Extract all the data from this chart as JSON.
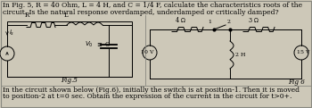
{
  "bg_color": "#cdc8b8",
  "text_top_line1": "In Fig. 5, R = 40 Ohm, L = 4 H, and C = 1/4 F, calculate the characteristics roots of the",
  "text_top_line2": "circuit. Is the natural response overdamped, underdamped or critically damped?",
  "text_bottom_line1": "In the circuit shown below (Fig.6), initially the switch is at position-1. Then it is moved",
  "text_bottom_line2": "to position-2 at t=0 sec. Obtain the expression of the current in the circuit for t>0+.",
  "fig5_label": "Fig.5",
  "fig6_label": "Fig 6",
  "border_color": "#888880",
  "font_size": 5.5,
  "label_font_size": 5.2,
  "circuit_font_size": 5.0
}
